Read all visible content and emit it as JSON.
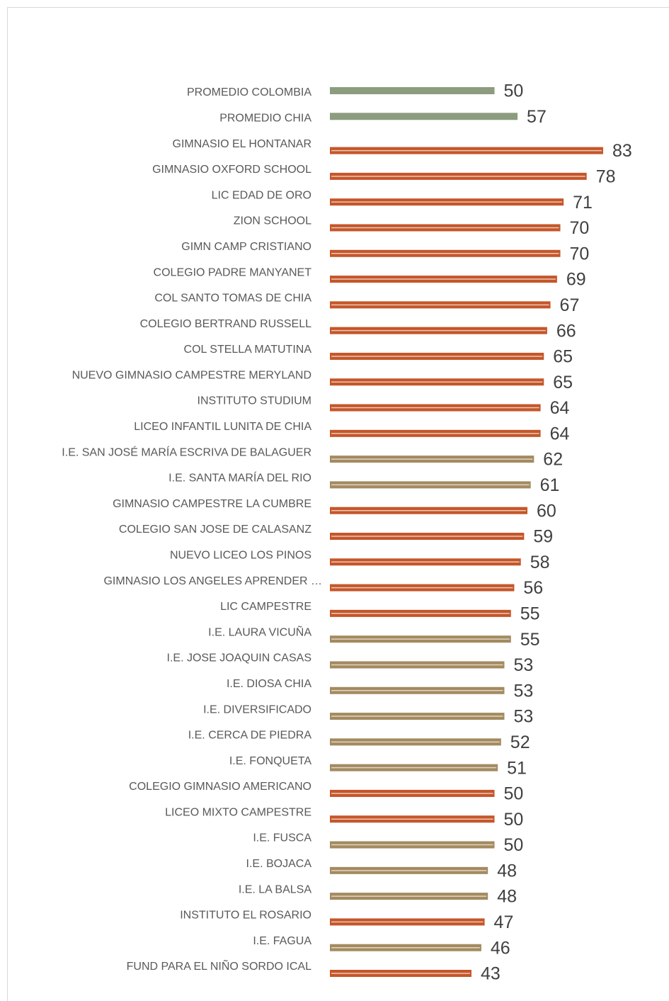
{
  "chart_data": {
    "type": "bar",
    "orientation": "horizontal",
    "categories": [
      "PROMEDIO COLOMBIA",
      "PROMEDIO CHIA",
      "GIMNASIO EL HONTANAR",
      "GIMNASIO OXFORD SCHOOL",
      "LIC EDAD DE ORO",
      "ZION SCHOOL",
      "GIMN CAMP CRISTIANO",
      "COLEGIO PADRE MANYANET",
      "COL SANTO TOMAS DE CHIA",
      "COLEGIO BERTRAND RUSSELL",
      "COL STELLA MATUTINA",
      "NUEVO GIMNASIO CAMPESTRE MERYLAND",
      "INSTITUTO STUDIUM",
      "LICEO INFANTIL LUNITA DE CHIA",
      "I.E. SAN JOSÉ MARÍA ESCRIVA DE BALAGUER",
      "I.E. SANTA MARÍA DEL RIO",
      "GIMNASIO CAMPESTRE LA CUMBRE",
      "COLEGIO SAN JOSE DE CALASANZ",
      "NUEVO LICEO LOS PINOS",
      "GIMNASIO LOS ANGELES APRENDER …",
      "LIC CAMPESTRE",
      "I.E. LAURA VICUÑA",
      "I.E. JOSE JOAQUIN CASAS",
      "I.E. DIOSA CHIA",
      "I.E. DIVERSIFICADO",
      "I.E. CERCA DE PIEDRA",
      "I.E. FONQUETA",
      "COLEGIO GIMNASIO AMERICANO",
      "LICEO MIXTO CAMPESTRE",
      "I.E. FUSCA",
      "I.E. BOJACA",
      "I.E. LA BALSA",
      "INSTITUTO EL ROSARIO",
      "I.E. FAGUA",
      "FUND PARA EL NIÑO SORDO ICAL"
    ],
    "values": [
      50,
      57,
      83,
      78,
      71,
      70,
      70,
      69,
      67,
      66,
      65,
      65,
      64,
      64,
      62,
      61,
      60,
      59,
      58,
      56,
      55,
      55,
      53,
      53,
      53,
      52,
      51,
      50,
      50,
      50,
      48,
      48,
      47,
      46,
      43
    ],
    "colors": [
      "#8c9c7e",
      "#8c9c7e",
      "#c5562a",
      "#c5562a",
      "#c5562a",
      "#c5562a",
      "#c5562a",
      "#c5562a",
      "#c5562a",
      "#c5562a",
      "#c5562a",
      "#c5562a",
      "#c5562a",
      "#c5562a",
      "#a38b60",
      "#a38b60",
      "#c5562a",
      "#c5562a",
      "#c5562a",
      "#c5562a",
      "#c5562a",
      "#a38b60",
      "#a38b60",
      "#a38b60",
      "#a38b60",
      "#a38b60",
      "#a38b60",
      "#c5562a",
      "#c5562a",
      "#a38b60",
      "#a38b60",
      "#a38b60",
      "#c5562a",
      "#a38b60",
      "#c5562a"
    ]
  }
}
